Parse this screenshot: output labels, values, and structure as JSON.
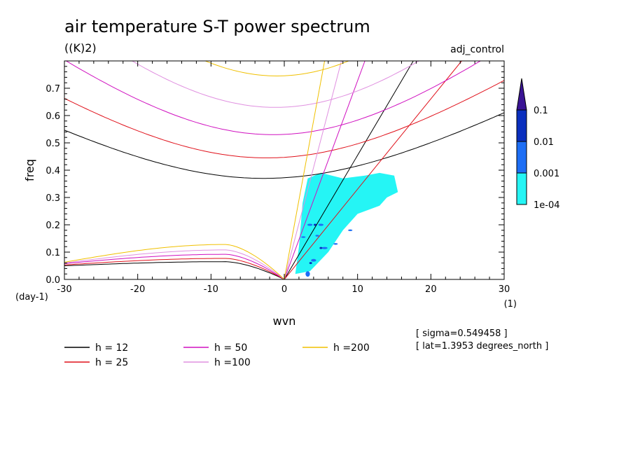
{
  "chart_data": {
    "type": "line",
    "title": "air temperature S-T power spectrum",
    "units": "((K)2)",
    "run_name": "adj_control",
    "xlabel": "wvn",
    "xunit": "(1)",
    "ylabel": "freq",
    "yunit": "(day-1)",
    "xlim": [
      -30,
      30
    ],
    "ylim": [
      0,
      0.8
    ],
    "x_ticks": [
      "-30",
      "-20",
      "-10",
      "0",
      "10",
      "20",
      "30"
    ],
    "y_ticks": [
      "0.0",
      "0.1",
      "0.2",
      "0.3",
      "0.4",
      "0.5",
      "0.6",
      "0.7"
    ],
    "colorbar": {
      "labels": [
        "0.1",
        "0.01",
        "0.001",
        "1e-04"
      ],
      "colors": [
        "#3a1494",
        "#0a2fbe",
        "#1d6ef5",
        "#25f5f5"
      ]
    },
    "legend": [
      {
        "label": "h = 12",
        "color": "#000000"
      },
      {
        "label": "h = 25",
        "color": "#e0101a"
      },
      {
        "label": "h = 50",
        "color": "#d010c0"
      },
      {
        "label": "h =100",
        "color": "#e090e0"
      },
      {
        "label": "h =200",
        "color": "#f0c000"
      }
    ],
    "metadata": [
      "[ sigma=0.549458 ]",
      "[ lat=1.3953 degrees_north ]"
    ],
    "series": [
      {
        "name": "h = 12",
        "kelvin_max_x": 17.6,
        "rossby_min": 0.37,
        "rossby_x_at_min": -2.8,
        "mrg_at_left": 0.05,
        "mrg_peak": 0.065
      },
      {
        "name": "h = 25",
        "kelvin_max_x": 24.2,
        "rossby_min": 0.445,
        "rossby_x_at_min": -2.4,
        "mrg_at_left": 0.053,
        "mrg_peak": 0.077
      },
      {
        "name": "h = 50",
        "kelvin_max_x": 11.0,
        "rossby_min": 0.53,
        "rossby_x_at_min": -1.5,
        "mrg_at_left": 0.058,
        "mrg_peak": 0.092
      },
      {
        "name": "h =100",
        "kelvin_max_x": 7.8,
        "rossby_min": 0.63,
        "rossby_x_at_min": -1.2,
        "mrg_at_left": 0.06,
        "mrg_peak": 0.108
      },
      {
        "name": "h =200",
        "kelvin_max_x": 5.5,
        "rossby_min": 0.745,
        "rossby_x_at_min": -1.0,
        "mrg_at_left": 0.063,
        "mrg_peak": 0.128
      }
    ]
  }
}
